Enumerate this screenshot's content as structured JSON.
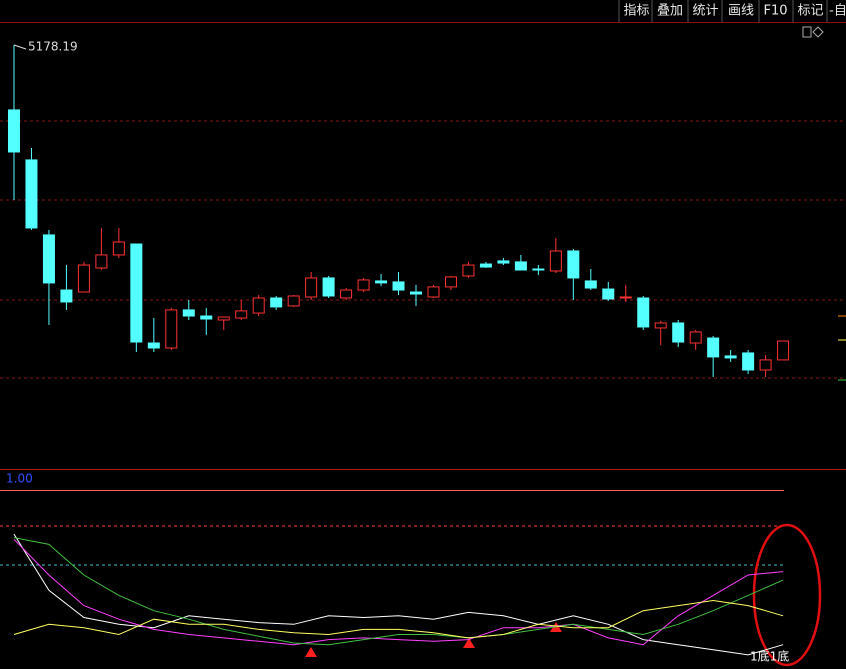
{
  "toolbar": [
    "指标",
    "叠加",
    "统计",
    "画线",
    "F10",
    "标记",
    "-自"
  ],
  "chart_data": [
    {
      "type": "candlestick",
      "up_color": "#ff3232",
      "down_color": "#54ffff",
      "xlim": [
        -0.8,
        47.6
      ],
      "ylim": [
        2200,
        5340
      ],
      "open": [
        4721,
        4369,
        3841,
        3453,
        3439,
        3608,
        3700,
        3777,
        3080,
        3045,
        3313,
        3270,
        3242,
        3256,
        3291,
        3397,
        3341,
        3404,
        3538,
        3397,
        3453,
        3517,
        3510,
        3439,
        3404,
        3475,
        3552,
        3636,
        3658,
        3651,
        3601,
        3587,
        3728,
        3517,
        3460,
        3397,
        3397,
        3186,
        3221,
        3080,
        3115,
        2989,
        3010,
        2890,
        2961
      ],
      "high": [
        5178.19,
        4453,
        3876,
        3629,
        3651,
        3890,
        3890,
        3777,
        3256,
        3327,
        3383,
        3327,
        3263,
        3383,
        3418,
        3411,
        3418,
        3580,
        3552,
        3467,
        3538,
        3566,
        3580,
        3489,
        3489,
        3552,
        3651,
        3651,
        3679,
        3700,
        3629,
        3819,
        3742,
        3601,
        3510,
        3489,
        3411,
        3235,
        3242,
        3172,
        3130,
        3031,
        3031,
        2996,
        3094
      ],
      "low": [
        4087,
        3876,
        3207,
        3313,
        3439,
        3594,
        3679,
        3017,
        3017,
        3031,
        3242,
        3137,
        3172,
        3242,
        3270,
        3313,
        3334,
        3383,
        3397,
        3383,
        3439,
        3482,
        3418,
        3341,
        3397,
        3453,
        3538,
        3608,
        3629,
        3594,
        3559,
        3573,
        3383,
        3453,
        3376,
        3369,
        3172,
        3066,
        3052,
        3031,
        2841,
        2947,
        2862,
        2841,
        2961
      ],
      "close": [
        4425,
        3890,
        3503,
        3369,
        3629,
        3700,
        3791,
        3087,
        3045,
        3313,
        3270,
        3249,
        3263,
        3306,
        3397,
        3334,
        3411,
        3538,
        3411,
        3453,
        3524,
        3503,
        3453,
        3425,
        3475,
        3545,
        3629,
        3615,
        3643,
        3594,
        3594,
        3728,
        3538,
        3467,
        3390,
        3404,
        3193,
        3221,
        3087,
        3158,
        2982,
        2975,
        2890,
        2961,
        3094
      ]
    },
    {
      "type": "line",
      "xlim": [
        -0.8,
        47.6
      ],
      "ylim": [
        0,
        1
      ],
      "yticks": [
        {
          "value": 1,
          "label": "1.00"
        }
      ],
      "x": [
        0,
        2,
        4,
        6,
        8,
        10,
        12,
        14,
        16,
        18,
        20,
        22,
        24,
        26,
        28,
        30,
        32,
        34,
        36,
        38,
        40,
        42,
        44
      ],
      "series": [
        {
          "color": "#ffffff",
          "values": [
            0.74,
            0.41,
            0.25,
            0.21,
            0.19,
            0.26,
            0.24,
            0.22,
            0.21,
            0.26,
            0.25,
            0.26,
            0.24,
            0.28,
            0.26,
            0.21,
            0.26,
            0.21,
            0.12,
            0.09,
            0.06,
            0.03,
            0.09
          ]
        },
        {
          "color": "#ff40ff",
          "values": [
            0.71,
            0.5,
            0.32,
            0.24,
            0.18,
            0.15,
            0.13,
            0.11,
            0.09,
            0.12,
            0.13,
            0.12,
            0.11,
            0.12,
            0.19,
            0.19,
            0.21,
            0.13,
            0.09,
            0.26,
            0.38,
            0.5,
            0.52
          ]
        },
        {
          "color": "#40c040",
          "values": [
            0.72,
            0.68,
            0.5,
            0.38,
            0.29,
            0.24,
            0.18,
            0.14,
            0.1,
            0.09,
            0.12,
            0.15,
            0.15,
            0.13,
            0.15,
            0.18,
            0.21,
            0.18,
            0.15,
            0.21,
            0.29,
            0.38,
            0.47
          ]
        },
        {
          "color": "#ffff60",
          "values": [
            0.15,
            0.21,
            0.19,
            0.15,
            0.24,
            0.21,
            0.21,
            0.18,
            0.16,
            0.15,
            0.18,
            0.18,
            0.16,
            0.13,
            0.15,
            0.21,
            0.19,
            0.19,
            0.29,
            0.32,
            0.35,
            0.32,
            0.26
          ]
        }
      ],
      "annotation": "1底1底"
    }
  ]
}
